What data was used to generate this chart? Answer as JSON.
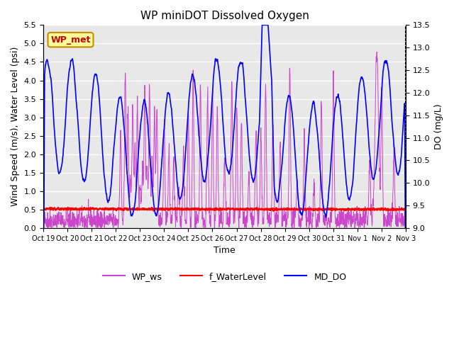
{
  "title": "WP miniDOT Dissolved Oxygen",
  "xlabel": "Time",
  "ylabel_left": "Wind Speed (m/s), Water Level (psi)",
  "ylabel_right": "DO (mg/L)",
  "ylim_left": [
    0,
    5.5
  ],
  "ylim_right": [
    9.0,
    13.5
  ],
  "yticks_left": [
    0.0,
    0.5,
    1.0,
    1.5,
    2.0,
    2.5,
    3.0,
    3.5,
    4.0,
    4.5,
    5.0,
    5.5
  ],
  "yticks_right": [
    9.0,
    9.5,
    10.0,
    10.5,
    11.0,
    11.5,
    12.0,
    12.5,
    13.0,
    13.5
  ],
  "xtick_labels": [
    "Oct 19",
    "Oct 20",
    "Oct 21",
    "Oct 22",
    "Oct 23",
    "Oct 24",
    "Oct 25",
    "Oct 26",
    "Oct 27",
    "Oct 28",
    "Oct 29",
    "Oct 30",
    "Oct 31",
    "Nov 1",
    "Nov 2",
    "Nov 3"
  ],
  "color_ws": "#CC44CC",
  "color_wl": "#FF0000",
  "color_do": "#0000FF",
  "legend_labels": [
    "WP_ws",
    "f_WaterLevel",
    "MD_DO"
  ],
  "legend_colors": [
    "#CC44CC",
    "#FF0000",
    "#0000FF"
  ],
  "box_label": "WP_met",
  "box_color": "#CC0000",
  "box_bg": "#FFFF99",
  "box_border": "#CC8800",
  "background_color": "#E8E8E8",
  "grid_color": "#FFFFFF",
  "n_points": 1680,
  "seed": 42
}
